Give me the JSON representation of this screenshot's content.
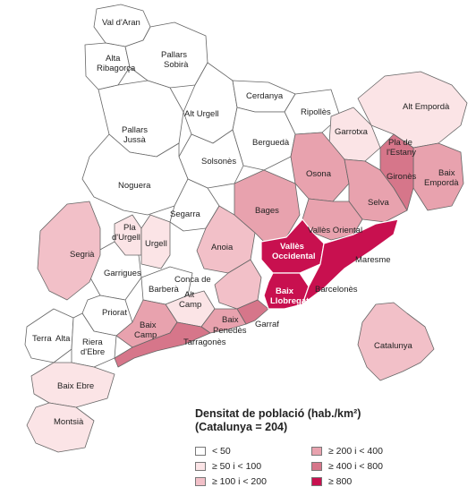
{
  "colors": {
    "c0": "#ffffff",
    "c1": "#fbe4e6",
    "c2": "#f2c0c8",
    "c3": "#e8a2ae",
    "c4": "#d6768a",
    "c5": "#c8104f",
    "border": "#666666"
  },
  "labels": {
    "val_daran": "Val d'Aran",
    "alta_ribagorca_1": "Alta",
    "alta_ribagorca_2": "Ribagorça",
    "pallars_sobira_1": "Pallars",
    "pallars_sobira_2": "Sobirà",
    "alt_urgell": "Alt Urgell",
    "cerdanya": "Cerdanya",
    "ripolles": "Ripollès",
    "alt_emporda": "Alt Empordà",
    "pallars_jussa_1": "Pallars",
    "pallars_jussa_2": "Jussà",
    "garrotxa": "Garrotxa",
    "berguedà": "Berguedà",
    "pla_estany_1": "Pla de",
    "pla_estany_2": "l'Estany",
    "solsones": "Solsonès",
    "osona": "Osona",
    "girones": "Gironès",
    "baix_emporda_1": "Baix",
    "baix_emporda_2": "Empordà",
    "noguera": "Noguera",
    "selva": "Selva",
    "segarra": "Segarra",
    "bages": "Bages",
    "pla_urgell_1": "Pla",
    "pla_urgell_2": "d'Urgell",
    "urgell": "Urgell",
    "anoia": "Anoia",
    "valles_occ_1": "Vallès",
    "valles_occ_2": "Occidental",
    "valles_oriental": "Vallès Oriental",
    "segria": "Segrià",
    "maresme": "Maresme",
    "garrigues": "Garrigues",
    "conca_1": "Conca de",
    "conca_2": "Barberà",
    "baix_llobregat_1": "Baix",
    "baix_llobregat_2": "Llobregat",
    "barcelones": "Barcelonès",
    "alt_camp_1": "Alt",
    "alt_camp_2": "Camp",
    "priorat": "Priorat",
    "baix_camp_1": "Baix",
    "baix_camp_2": "Camp",
    "baix_penedes_1": "Baix",
    "baix_penedes_2": "Penedès",
    "garraf": "Garraf",
    "terra_alta_1": "Terra",
    "terra_alta_2": "Alta",
    "ribera_1": "Riera",
    "ribera_2": "d'Ebre",
    "tarragones": "Tarragonès",
    "catalunya": "Catalunya",
    "baix_ebre": "Baix Ebre",
    "montsia": "Montsià"
  },
  "legend": {
    "title_line1": "Densitat de població (hab./km²)",
    "title_line2": "(Catalunya = 204)",
    "items": [
      {
        "label": "< 50",
        "color_key": "c0"
      },
      {
        "label": "≥ 200 i < 400",
        "color_key": "c3"
      },
      {
        "label": "≥ 50  i < 100",
        "color_key": "c1"
      },
      {
        "label": "≥ 400 i < 800",
        "color_key": "c4"
      },
      {
        "label": "≥ 100 i < 200",
        "color_key": "c2"
      },
      {
        "label": "≥ 800",
        "color_key": "c5"
      }
    ]
  }
}
